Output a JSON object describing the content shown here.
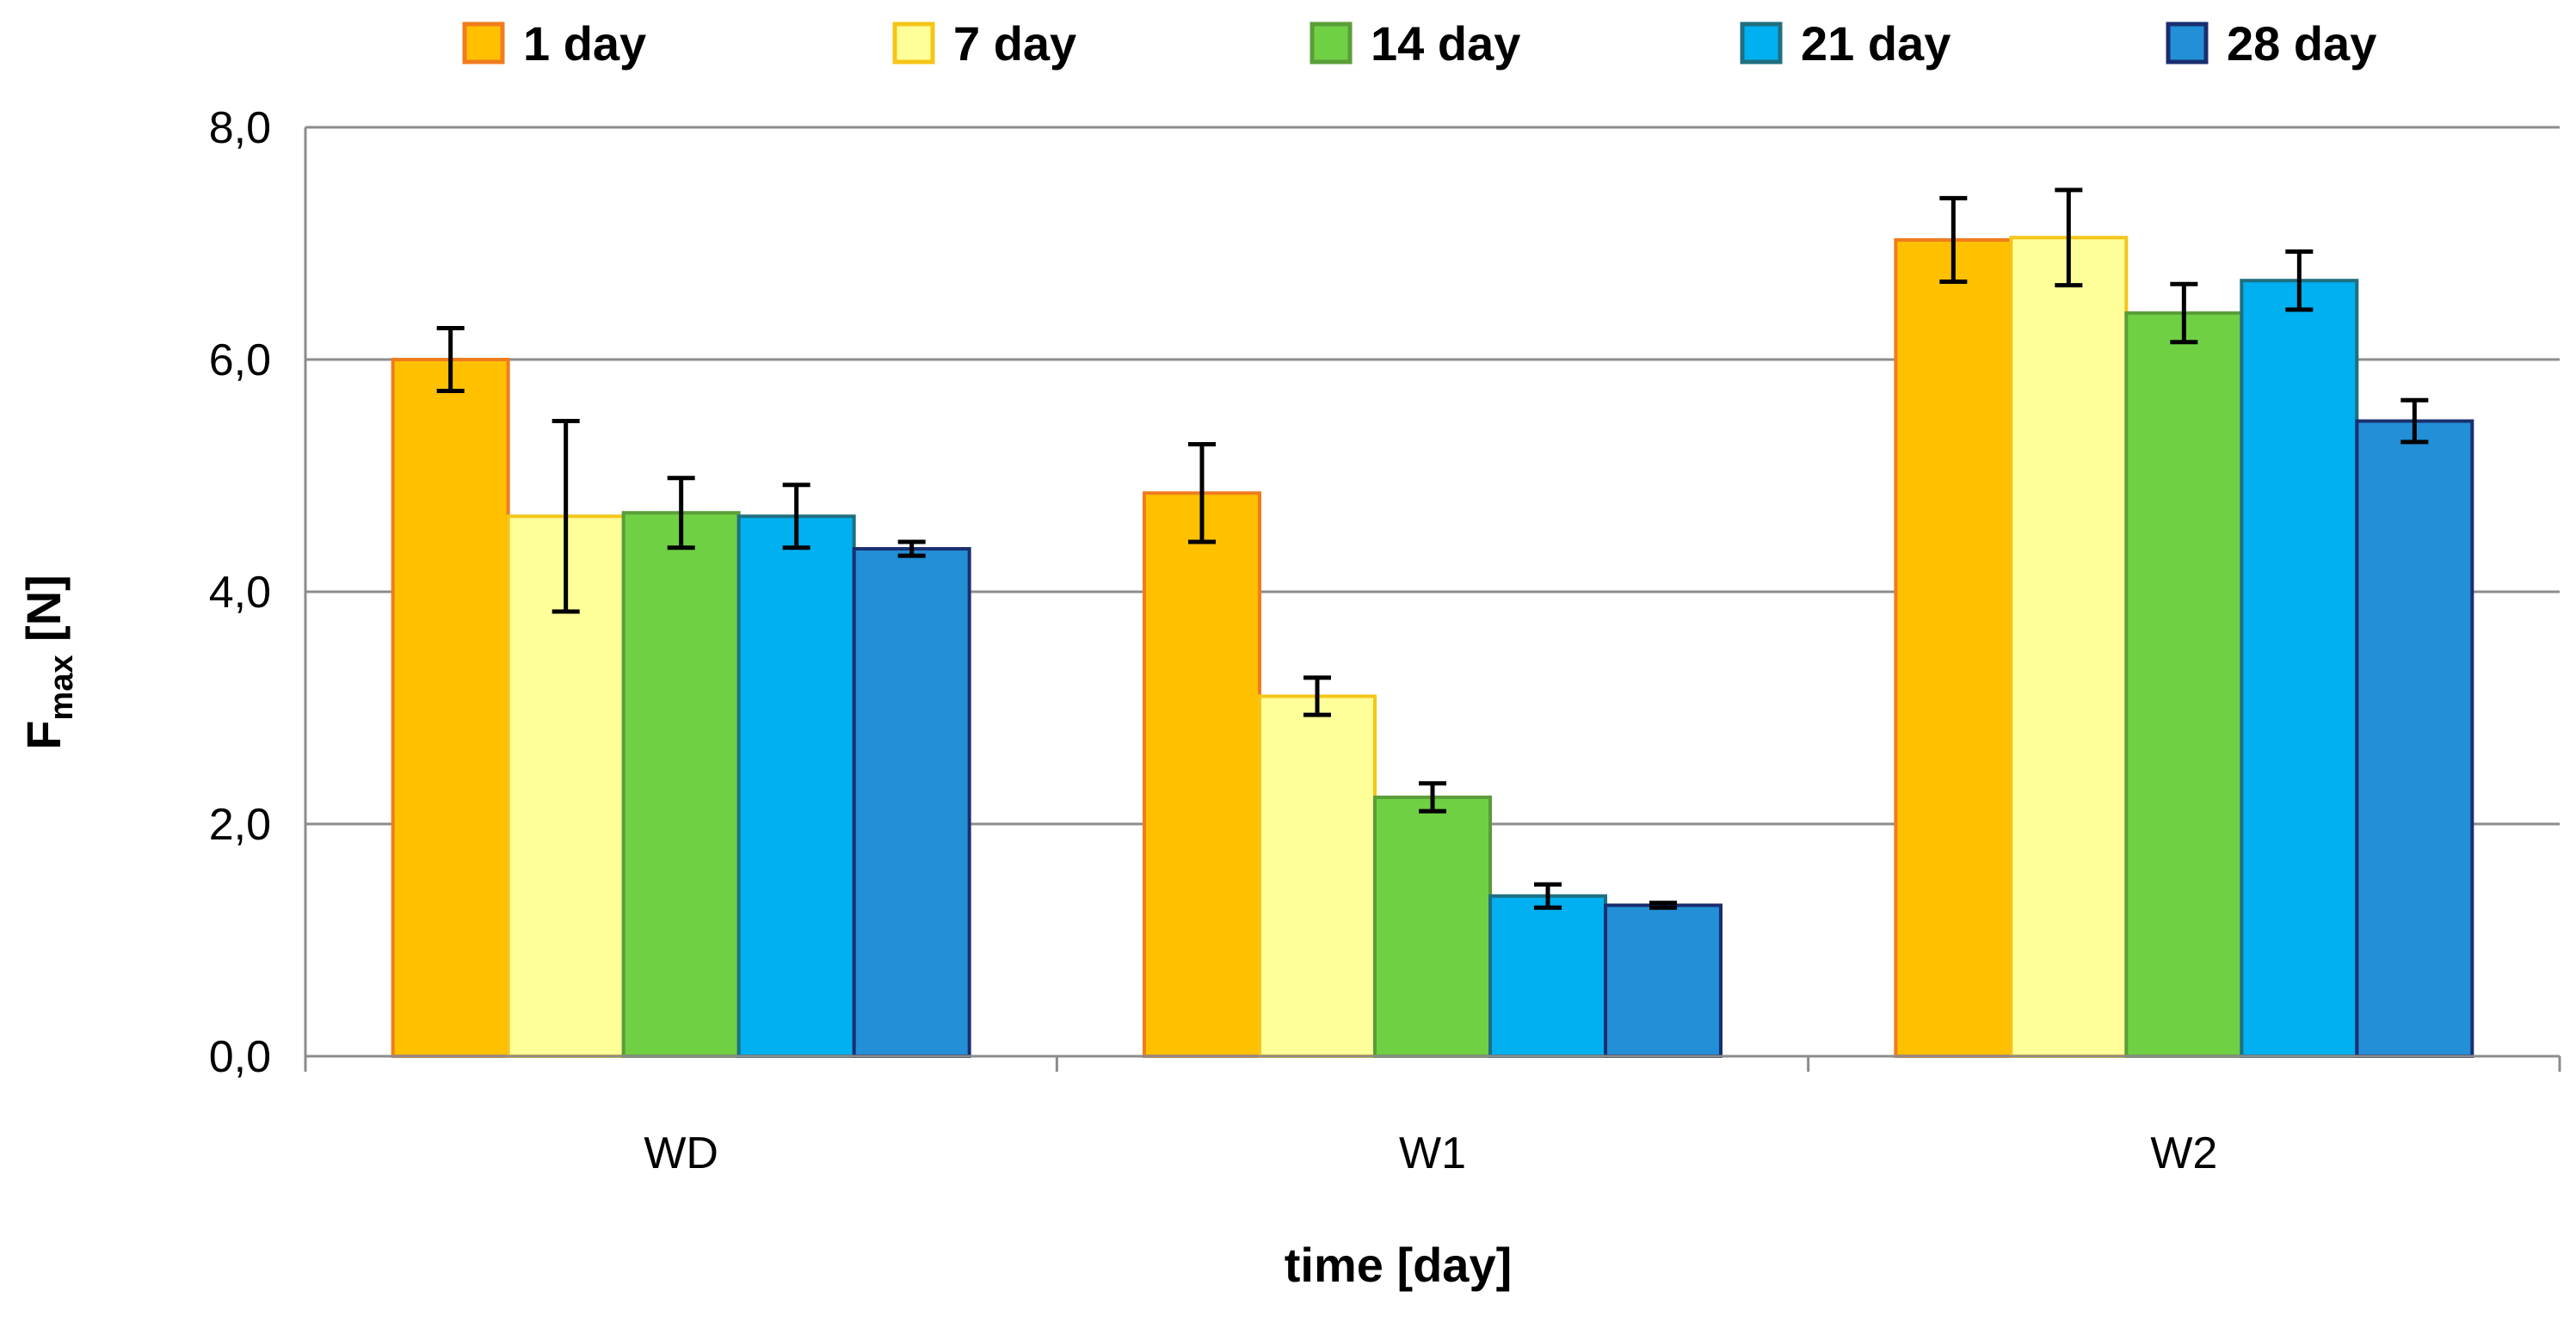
{
  "chart_data": {
    "type": "bar",
    "categories": [
      "WD",
      "W1",
      "W2"
    ],
    "series": [
      {
        "name": "1 day",
        "fill": "#FFC000",
        "stroke": "#F07C1E",
        "values": [
          6.0,
          4.85,
          7.03
        ],
        "errors": [
          0.27,
          0.42,
          0.36
        ]
      },
      {
        "name": "7 day",
        "fill": "#FFFF99",
        "stroke": "#F5C518",
        "values": [
          4.65,
          3.1,
          7.05
        ],
        "errors": [
          0.82,
          0.16,
          0.41
        ]
      },
      {
        "name": "14 day",
        "fill": "#70D044",
        "stroke": "#5A9E38",
        "values": [
          4.68,
          2.23,
          6.4
        ],
        "errors": [
          0.3,
          0.12,
          0.25
        ]
      },
      {
        "name": "21 day",
        "fill": "#00B0F0",
        "stroke": "#1F6F7F",
        "values": [
          4.65,
          1.38,
          6.68
        ],
        "errors": [
          0.27,
          0.1,
          0.25
        ]
      },
      {
        "name": "28 day",
        "fill": "#228FD6",
        "stroke": "#1A2F6F",
        "values": [
          4.37,
          1.3,
          5.47
        ],
        "errors": [
          0.06,
          0.02,
          0.18
        ]
      }
    ],
    "xlabel": "time [day]",
    "ylabel": {
      "main": "F",
      "sub": "max",
      "unit": " [N]"
    },
    "ylim": [
      0,
      8
    ],
    "yticks": [
      "0,0",
      "2,0",
      "4,0",
      "6,0",
      "8,0"
    ],
    "grid": true,
    "legend_position": "top"
  }
}
